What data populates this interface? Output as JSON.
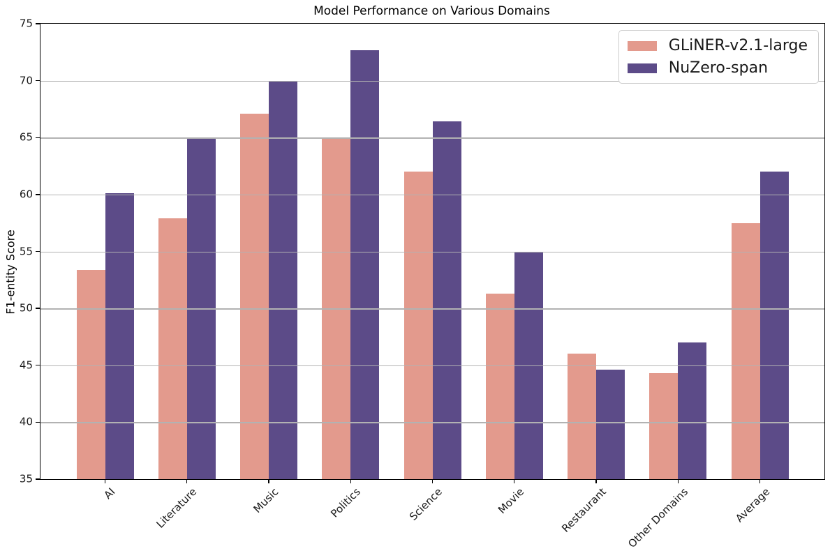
{
  "chart_data": {
    "type": "bar",
    "title": "Model Performance on Various Domains",
    "xlabel": "",
    "ylabel": "F1-entity Score",
    "categories": [
      "AI",
      "Literature",
      "Music",
      "Politics",
      "Science",
      "Movie",
      "Restaurant",
      "Other Domains",
      "Average"
    ],
    "series": [
      {
        "name": "GLiNER-v2.1-large",
        "color": "#e39a8d",
        "values": [
          53.4,
          57.9,
          67.1,
          65.0,
          62.0,
          51.3,
          46.0,
          44.3,
          57.5
        ]
      },
      {
        "name": "NuZero-span",
        "color": "#5c4b88",
        "values": [
          60.1,
          65.0,
          69.9,
          72.7,
          66.4,
          55.0,
          44.6,
          47.0,
          62.0
        ]
      }
    ],
    "ylim": [
      35,
      75
    ],
    "ytick_step": 5,
    "yticks": [
      35,
      40,
      45,
      50,
      55,
      60,
      65,
      70,
      75
    ],
    "grid": "horizontal, drawn above bars",
    "grid_color": "#b2b2b2",
    "legend_position": "upper-right",
    "x_tick_rotation_deg": 45,
    "background_color": "#ffffff"
  }
}
